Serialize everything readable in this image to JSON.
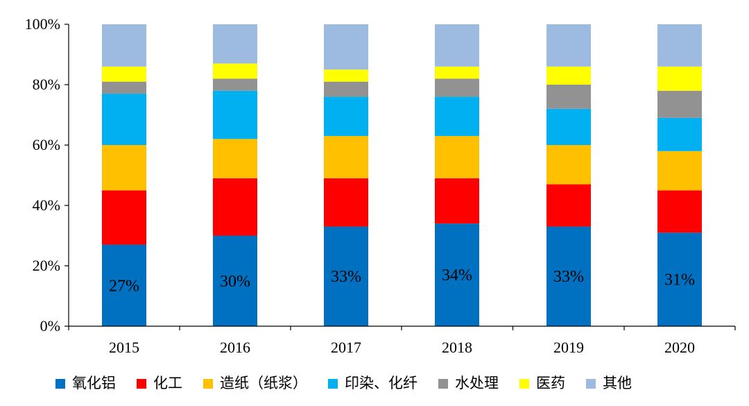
{
  "chart_data": {
    "type": "bar",
    "stacked": "percent",
    "categories": [
      "2015",
      "2016",
      "2017",
      "2018",
      "2019",
      "2020"
    ],
    "y_ticks": [
      "0%",
      "20%",
      "40%",
      "60%",
      "80%",
      "100%"
    ],
    "ylim": [
      0,
      100
    ],
    "grid": false,
    "legend_position": "bottom",
    "series": [
      {
        "name": "氧化铝",
        "color": "#0070C0",
        "values": [
          27,
          30,
          33,
          34,
          33,
          31
        ]
      },
      {
        "name": "化工",
        "color": "#FF0000",
        "values": [
          18,
          19,
          16,
          15,
          14,
          14
        ]
      },
      {
        "name": "造纸（纸浆）",
        "color": "#FFC000",
        "values": [
          15,
          13,
          14,
          14,
          13,
          13
        ]
      },
      {
        "name": "印染、化纤",
        "color": "#00B0F0",
        "values": [
          17,
          16,
          13,
          13,
          12,
          11
        ]
      },
      {
        "name": "水处理",
        "color": "#929292",
        "values": [
          4,
          4,
          5,
          6,
          8,
          9
        ]
      },
      {
        "name": "医药",
        "color": "#FFFF00",
        "values": [
          5,
          5,
          4,
          4,
          6,
          8
        ]
      },
      {
        "name": "其他",
        "color": "#9DBBE0",
        "values": [
          14,
          13,
          15,
          14,
          14,
          14
        ]
      }
    ],
    "data_labels": [
      "27%",
      "30%",
      "33%",
      "34%",
      "33%",
      "31%"
    ]
  }
}
